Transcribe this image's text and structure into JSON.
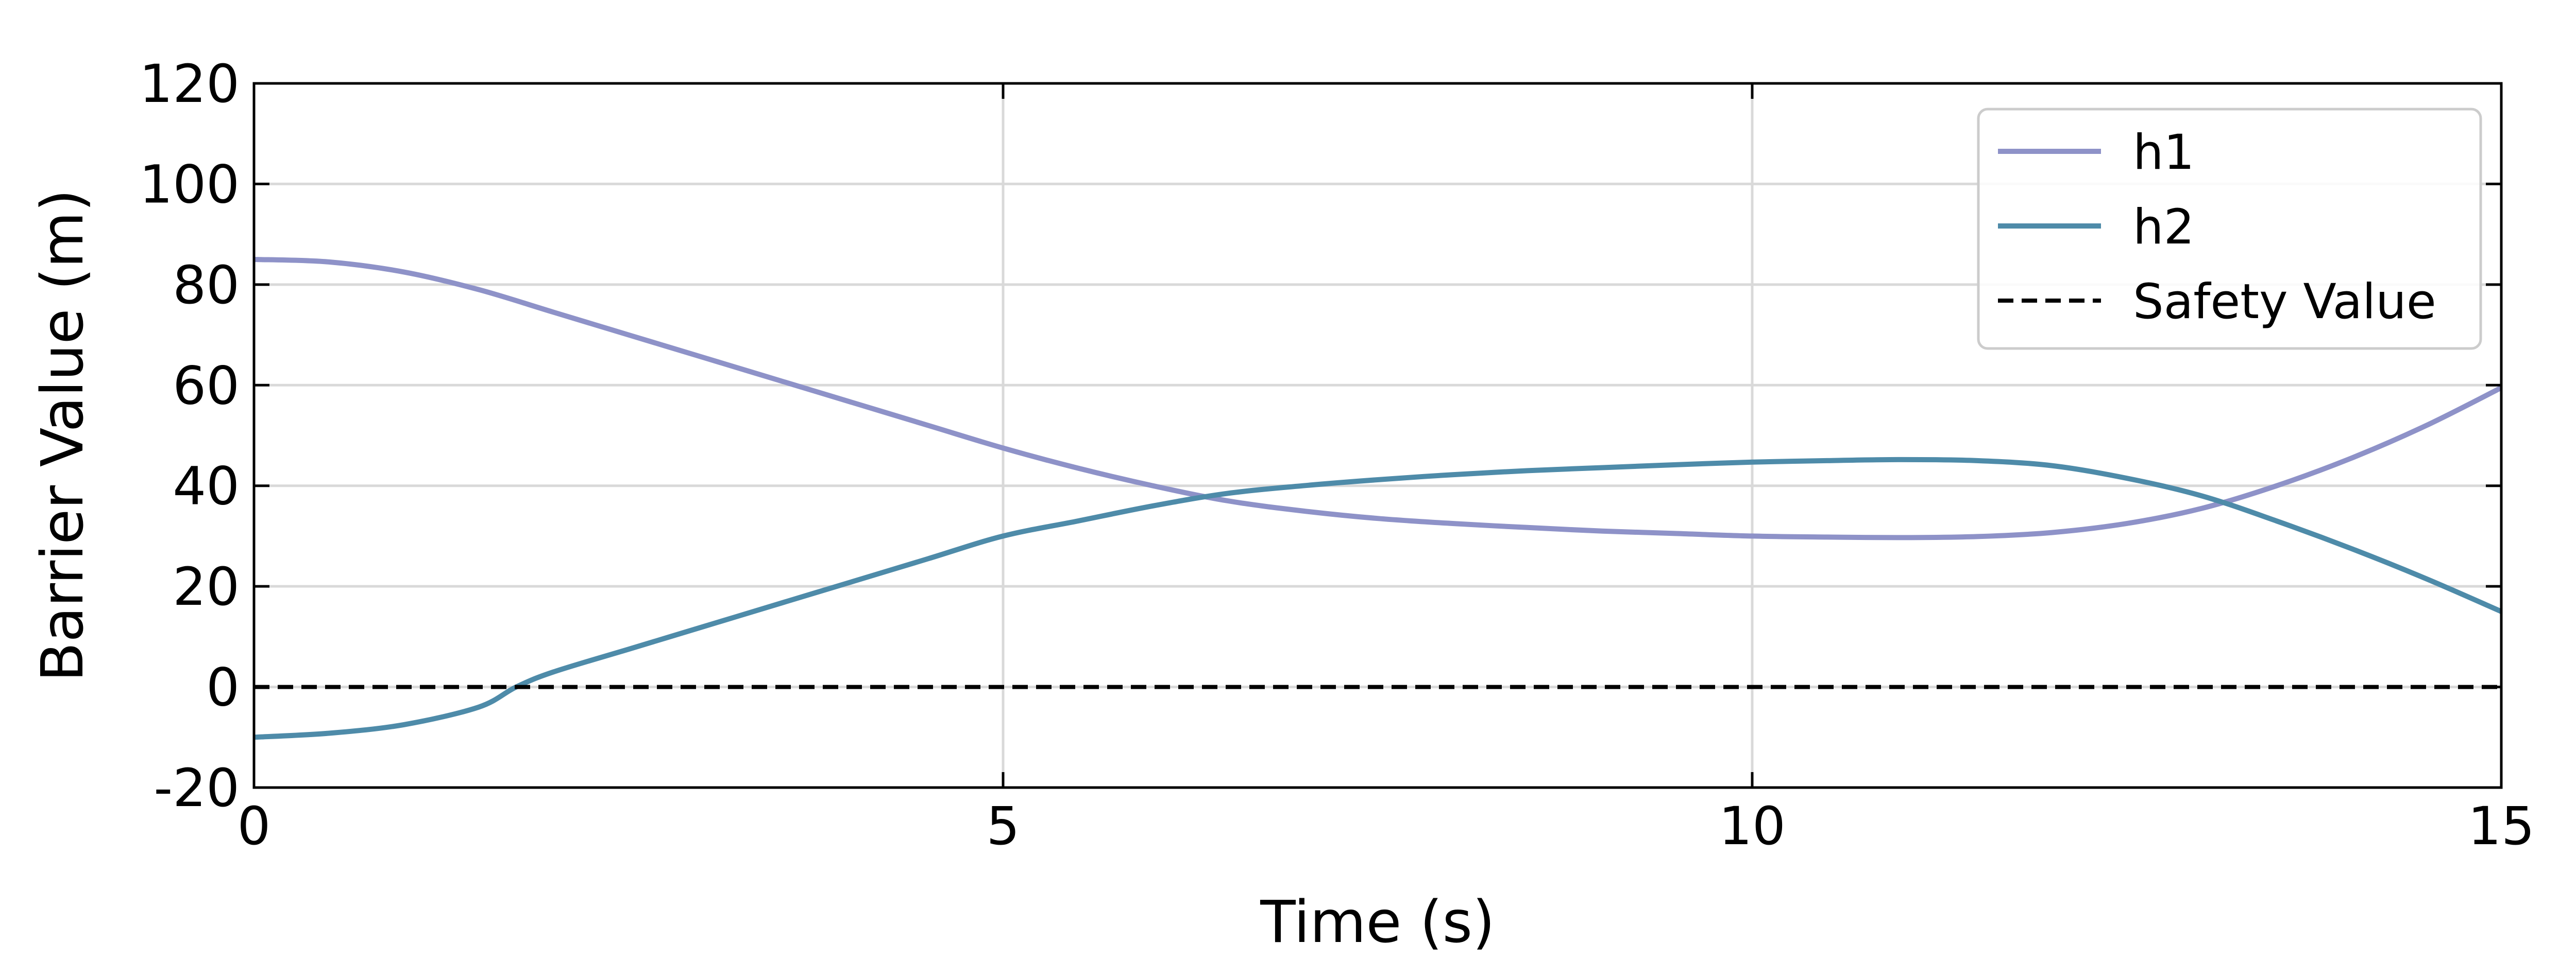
{
  "chart_data": {
    "type": "line",
    "title": "",
    "xlabel": "Time (s)",
    "ylabel": "Barrier Value (m)",
    "xlim": [
      0,
      15
    ],
    "ylim": [
      -20,
      120
    ],
    "xticks": [
      0,
      5,
      10,
      15
    ],
    "yticks": [
      -20,
      0,
      20,
      40,
      60,
      80,
      100,
      120
    ],
    "grid": true,
    "legend_position": "top-right",
    "series": [
      {
        "name": "h1",
        "color": "#8E92C8",
        "style": "solid",
        "x": [
          0,
          0.5,
          1,
          1.5,
          2,
          2.5,
          3,
          3.5,
          4,
          4.5,
          5,
          5.5,
          6,
          6.5,
          7,
          7.5,
          8,
          8.5,
          9,
          9.5,
          10,
          10.5,
          11,
          11.5,
          12,
          12.5,
          13,
          13.5,
          14,
          14.5,
          15
        ],
        "y": [
          85,
          84.5,
          82.5,
          79,
          74.5,
          70,
          65.5,
          61,
          56.5,
          52,
          47.5,
          43.5,
          40,
          37,
          35,
          33.5,
          32.5,
          31.7,
          31,
          30.5,
          30,
          29.8,
          29.7,
          29.9,
          30.7,
          32.5,
          35.5,
          40,
          45.5,
          52,
          59.5
        ]
      },
      {
        "name": "h2",
        "color": "#4E8BA9",
        "style": "solid",
        "x": [
          0,
          0.5,
          1,
          1.5,
          1.75,
          2,
          2.5,
          3,
          3.5,
          4,
          4.5,
          5,
          5.5,
          6,
          6.5,
          7,
          7.5,
          8,
          8.5,
          9,
          9.5,
          10,
          10.5,
          11,
          11.5,
          12,
          12.5,
          13,
          13.5,
          14,
          14.5,
          15
        ],
        "y": [
          -10,
          -9.2,
          -7.5,
          -4,
          0,
          3,
          7.5,
          12,
          16.5,
          21,
          25.5,
          30,
          33,
          36,
          38.5,
          40,
          41.2,
          42.2,
          43,
          43.6,
          44.2,
          44.7,
          45,
          45.2,
          45,
          44,
          41.5,
          38,
          33,
          27.5,
          21.5,
          15
        ]
      },
      {
        "name": "Safety Value",
        "color": "#000000",
        "style": "dashed",
        "x": [
          0,
          15
        ],
        "y": [
          0,
          0
        ]
      }
    ]
  }
}
